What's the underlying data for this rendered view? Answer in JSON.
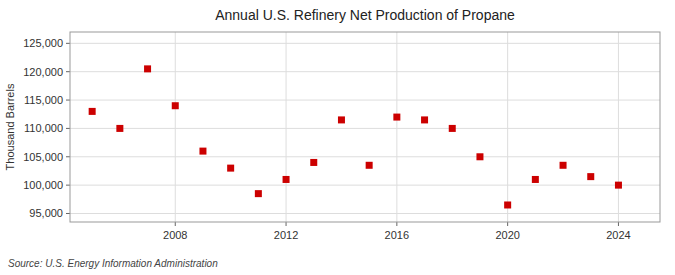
{
  "chart_data": {
    "type": "scatter",
    "title": "Annual U.S. Refinery Net Production of Propane",
    "ylabel": "Thousand Barrels",
    "annotation": "Source: U.S. Energy Information Administration",
    "x": [
      2005,
      2006,
      2007,
      2008,
      2009,
      2010,
      2011,
      2012,
      2013,
      2014,
      2015,
      2016,
      2017,
      2018,
      2019,
      2020,
      2021,
      2022,
      2023,
      2024
    ],
    "values": [
      113000,
      110000,
      120500,
      114000,
      106000,
      103000,
      98500,
      101000,
      104000,
      111500,
      103500,
      112000,
      111500,
      110000,
      105000,
      96500,
      101000,
      103500,
      101500,
      100000
    ],
    "color": "#cc0000",
    "marker": "square",
    "xlim": [
      2004.2,
      2025.5
    ],
    "xticks": [
      2008,
      2012,
      2016,
      2020,
      2024
    ],
    "ylim": [
      93500,
      127000
    ],
    "yticks": [
      {
        "value": 95000,
        "label": "95,000"
      },
      {
        "value": 100000,
        "label": "100,000"
      },
      {
        "value": 105000,
        "label": "105,000"
      },
      {
        "value": 110000,
        "label": "110,000"
      },
      {
        "value": 115000,
        "label": "115,000"
      },
      {
        "value": 120000,
        "label": "120,000"
      },
      {
        "value": 125000,
        "label": "125,000"
      }
    ],
    "grid": true
  }
}
